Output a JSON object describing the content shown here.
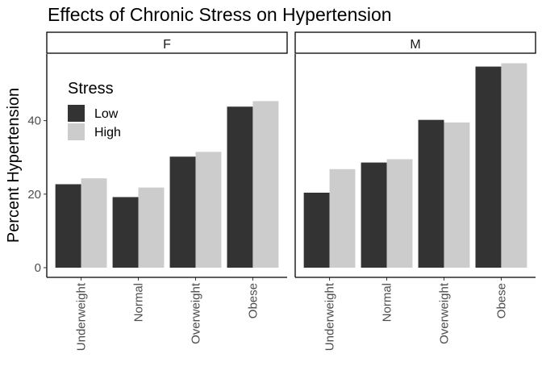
{
  "chart_data": {
    "type": "bar",
    "title": "Effects of Chronic Stress on Hypertension",
    "xlabel": "",
    "ylabel": "Percent Hypertension",
    "ylim": [
      0,
      58
    ],
    "yticks": [
      0,
      20,
      40
    ],
    "categories": [
      "Underweight",
      "Normal",
      "Overweight",
      "Obese"
    ],
    "legend": {
      "title": "Stress",
      "position": "top-left",
      "entries": [
        {
          "name": "Low",
          "color": "#333333"
        },
        {
          "name": "High",
          "color": "#cccccc"
        }
      ]
    },
    "panels": [
      {
        "label": "F",
        "series": [
          {
            "name": "Low",
            "color": "#333333",
            "values": [
              22.7,
              19.2,
              30.2,
              43.8
            ]
          },
          {
            "name": "High",
            "color": "#cccccc",
            "values": [
              24.3,
              21.8,
              31.5,
              45.3
            ]
          }
        ]
      },
      {
        "label": "M",
        "series": [
          {
            "name": "Low",
            "color": "#333333",
            "values": [
              20.4,
              28.6,
              40.2,
              54.7
            ]
          },
          {
            "name": "High",
            "color": "#cccccc",
            "values": [
              26.8,
              29.5,
              39.5,
              55.6
            ]
          }
        ]
      }
    ]
  }
}
